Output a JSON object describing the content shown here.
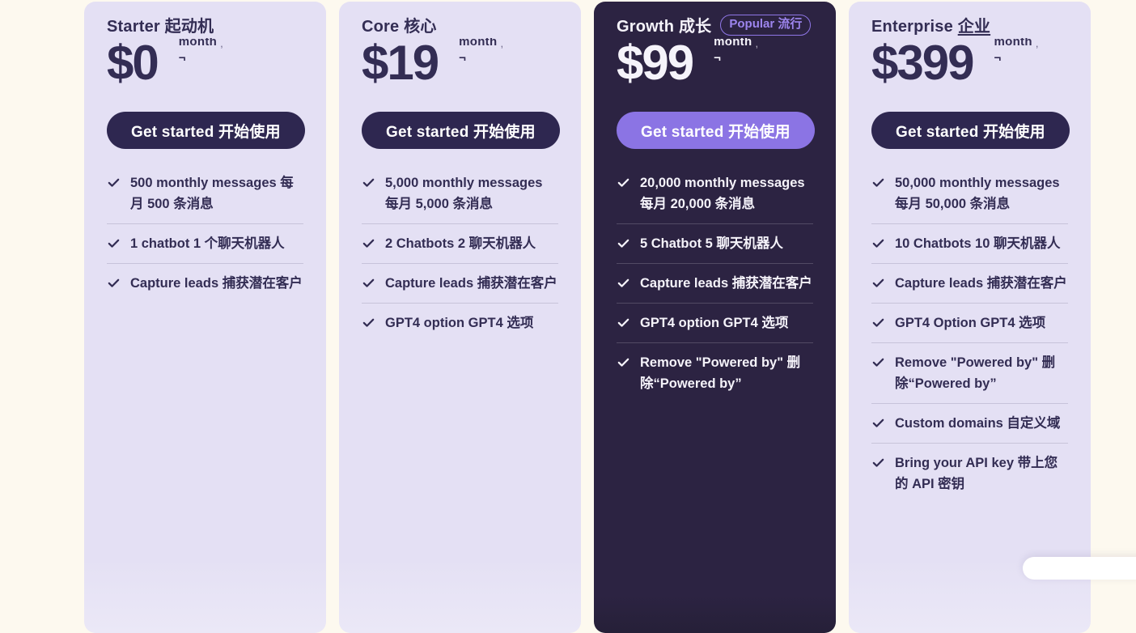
{
  "colors": {
    "page_background": "#fdf9ef",
    "card_background": "#e4e0f4",
    "dark_card_background": "#2c2342",
    "dark_card_button": "#8b74e4",
    "light_card_button": "#2e2750",
    "badge_purple": "#9d85ee",
    "text_dark": "#332d54"
  },
  "period": {
    "unit": "month",
    "comma": ",",
    "mark": "¬"
  },
  "cards": [
    {
      "id": "starter",
      "name_en": "Starter",
      "name_zh": "起动机",
      "name_zh_underlined": false,
      "price": "$0",
      "button_label": "Get started 开始使用",
      "theme": "light",
      "features": [
        "500 monthly messages 每月 500 条消息",
        "1 chatbot 1 个聊天机器人",
        "Capture leads 捕获潜在客户"
      ]
    },
    {
      "id": "core",
      "name_en": "Core",
      "name_zh": "核心",
      "name_zh_underlined": false,
      "price": "$19",
      "button_label": "Get started 开始使用",
      "theme": "light",
      "features": [
        "5,000 monthly messages 每月 5,000 条消息",
        "2 Chatbots 2 聊天机器人",
        "Capture leads 捕获潜在客户",
        "GPT4 option GPT4 选项"
      ]
    },
    {
      "id": "growth",
      "name_en": "Growth",
      "name_zh": "成长",
      "name_zh_underlined": false,
      "badge": "Popular 流行",
      "price": "$99",
      "button_label": "Get started 开始使用",
      "theme": "dark",
      "features": [
        "20,000 monthly messages 每月 20,000 条消息",
        "5 Chatbot 5 聊天机器人",
        "Capture leads 捕获潜在客户",
        "GPT4 option GPT4 选项",
        "Remove \"Powered by\" 删除“Powered by”"
      ]
    },
    {
      "id": "enterprise",
      "name_en": "Enterprise",
      "name_zh": "企业",
      "name_zh_underlined": true,
      "price": "$399",
      "button_label": "Get started 开始使用",
      "theme": "light",
      "features": [
        "50,000 monthly messages 每月 50,000 条消息",
        "10 Chatbots 10 聊天机器人",
        "Capture leads 捕获潜在客户",
        "GPT4 Option GPT4 选项",
        "Remove \"Powered by\" 删除“Powered by”",
        "Custom domains 自定义域",
        "Bring your API key 带上您的 API 密钥"
      ]
    }
  ]
}
